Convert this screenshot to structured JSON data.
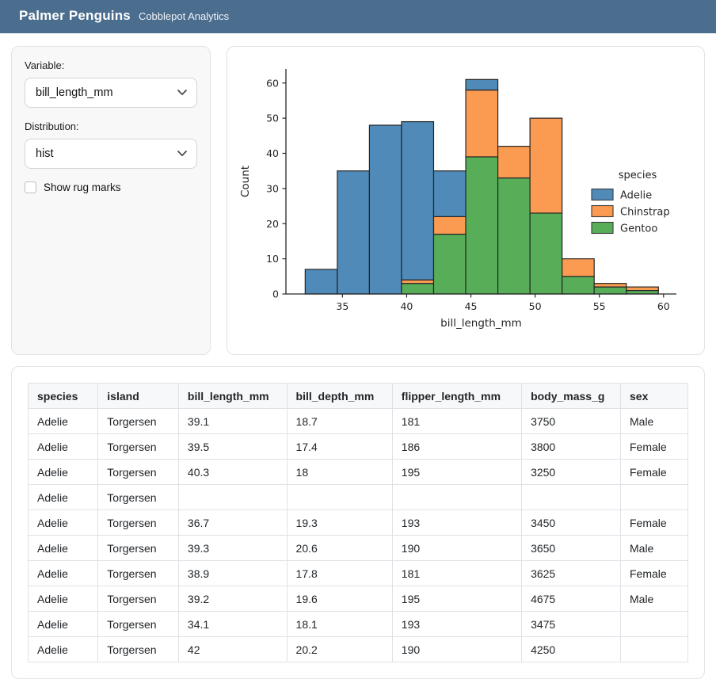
{
  "colors": {
    "header_bg": "#4b6d8e",
    "adelie_blue": "#4f8ab8",
    "chinstrap_orange": "#fb9a51",
    "gentoo_green": "#58ae58",
    "bar_edge": "#262626"
  },
  "header": {
    "title": "Palmer Penguins",
    "subtitle": "Cobblepot Analytics"
  },
  "sidebar": {
    "variable_label": "Variable:",
    "variable_value": "bill_length_mm",
    "distribution_label": "Distribution:",
    "distribution_value": "hist",
    "rug_label": "Show rug marks",
    "rug_checked": false
  },
  "chart_data": {
    "type": "bar",
    "subtype": "stacked-histogram",
    "title": "",
    "xlabel": "bill_length_mm",
    "ylabel": "Count",
    "legend_title": "species",
    "legend_position": "center right",
    "grid": false,
    "bin_edges": [
      32.1,
      34.6,
      37.1,
      39.6,
      42.1,
      44.6,
      47.1,
      49.6,
      52.1,
      54.6,
      57.1,
      59.6
    ],
    "series": [
      {
        "name": "Adelie",
        "color": "#4f8ab8",
        "values": [
          7,
          35,
          48,
          45,
          13,
          3,
          0,
          0,
          0,
          0,
          0
        ]
      },
      {
        "name": "Chinstrap",
        "color": "#fb9a51",
        "values": [
          0,
          0,
          0,
          1,
          5,
          19,
          9,
          27,
          5,
          1,
          1
        ]
      },
      {
        "name": "Gentoo",
        "color": "#58ae58",
        "values": [
          0,
          0,
          0,
          3,
          17,
          39,
          33,
          23,
          5,
          2,
          1
        ]
      }
    ],
    "stack_order_bottom_to_top": [
      "Gentoo",
      "Chinstrap",
      "Adelie"
    ],
    "bar_totals": [
      7,
      35,
      48,
      49,
      35,
      61,
      42,
      50,
      10,
      3,
      2
    ],
    "xlim": [
      30.6,
      61.0
    ],
    "ylim": [
      0,
      64
    ],
    "xticks": [
      35,
      40,
      45,
      50,
      55,
      60
    ],
    "yticks": [
      0,
      10,
      20,
      30,
      40,
      50,
      60
    ]
  },
  "table": {
    "columns": [
      "species",
      "island",
      "bill_length_mm",
      "bill_depth_mm",
      "flipper_length_mm",
      "body_mass_g",
      "sex"
    ],
    "rows": [
      [
        "Adelie",
        "Torgersen",
        "39.1",
        "18.7",
        "181",
        "3750",
        "Male"
      ],
      [
        "Adelie",
        "Torgersen",
        "39.5",
        "17.4",
        "186",
        "3800",
        "Female"
      ],
      [
        "Adelie",
        "Torgersen",
        "40.3",
        "18",
        "195",
        "3250",
        "Female"
      ],
      [
        "Adelie",
        "Torgersen",
        "",
        "",
        "",
        "",
        ""
      ],
      [
        "Adelie",
        "Torgersen",
        "36.7",
        "19.3",
        "193",
        "3450",
        "Female"
      ],
      [
        "Adelie",
        "Torgersen",
        "39.3",
        "20.6",
        "190",
        "3650",
        "Male"
      ],
      [
        "Adelie",
        "Torgersen",
        "38.9",
        "17.8",
        "181",
        "3625",
        "Female"
      ],
      [
        "Adelie",
        "Torgersen",
        "39.2",
        "19.6",
        "195",
        "4675",
        "Male"
      ],
      [
        "Adelie",
        "Torgersen",
        "34.1",
        "18.1",
        "193",
        "3475",
        ""
      ],
      [
        "Adelie",
        "Torgersen",
        "42",
        "20.2",
        "190",
        "4250",
        ""
      ]
    ]
  }
}
